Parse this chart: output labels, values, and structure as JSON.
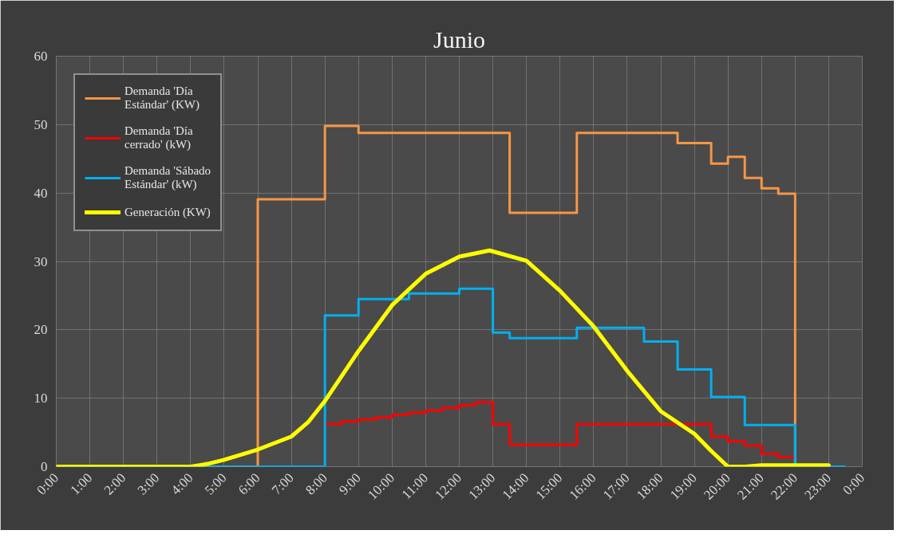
{
  "chart_data": {
    "type": "step",
    "title": "Junio",
    "xlim": [
      0,
      24
    ],
    "ylim": [
      0,
      60
    ],
    "yticks": [
      0,
      10,
      20,
      30,
      40,
      50,
      60
    ],
    "xticks": [
      {
        "value": 0,
        "label": "0:00"
      },
      {
        "value": 1,
        "label": "1:00"
      },
      {
        "value": 2,
        "label": "2:00"
      },
      {
        "value": 3,
        "label": "3:00"
      },
      {
        "value": 4,
        "label": "4:00"
      },
      {
        "value": 5,
        "label": "5:00"
      },
      {
        "value": 6,
        "label": "6:00"
      },
      {
        "value": 7,
        "label": "7:00"
      },
      {
        "value": 8,
        "label": "8:00"
      },
      {
        "value": 9,
        "label": "9:00"
      },
      {
        "value": 10,
        "label": "10:00"
      },
      {
        "value": 11,
        "label": "11:00"
      },
      {
        "value": 12,
        "label": "12:00"
      },
      {
        "value": 13,
        "label": "13:00"
      },
      {
        "value": 14,
        "label": "14:00"
      },
      {
        "value": 15,
        "label": "15:00"
      },
      {
        "value": 16,
        "label": "16:00"
      },
      {
        "value": 17,
        "label": "17:00"
      },
      {
        "value": 18,
        "label": "18:00"
      },
      {
        "value": 19,
        "label": "19:00"
      },
      {
        "value": 20,
        "label": "20:00"
      },
      {
        "value": 21,
        "label": "21:00"
      },
      {
        "value": 22,
        "label": "22:00"
      },
      {
        "value": 23,
        "label": "23:00"
      },
      {
        "value": 24,
        "label": "0:00"
      }
    ],
    "grid": true,
    "legend": "top left",
    "series": [
      {
        "name": "Demanda 'Día Estándar' (KW)",
        "color": "#f79646",
        "x": [
          0,
          6,
          8,
          9,
          13.5,
          15.5,
          18.5,
          19.5,
          20,
          20.5,
          21,
          21.5,
          22
        ],
        "values": [
          0,
          39.1,
          49.8,
          48.8,
          37.1,
          48.8,
          47.3,
          44.3,
          45.3,
          42.2,
          40.7,
          39.9,
          0
        ]
      },
      {
        "name": "Demanda 'Día cerrado' (kW)",
        "color": "#ff0000",
        "x": [
          8,
          8.5,
          9,
          9.5,
          10,
          10.5,
          11,
          11.5,
          12,
          12.5,
          13,
          13.5,
          15.5,
          19.5,
          20,
          20.5,
          21,
          21.5,
          22
        ],
        "values": [
          6.2,
          6.6,
          6.9,
          7.2,
          7.6,
          7.9,
          8.2,
          8.6,
          9.0,
          9.4,
          6.2,
          3.2,
          6.2,
          4.4,
          3.7,
          3.1,
          1.9,
          1.4,
          1.4
        ]
      },
      {
        "name": "Demanda 'Sábado Estándar' (kW)",
        "color": "#00b0f0",
        "x": [
          0,
          8,
          9,
          10.5,
          12,
          13,
          13.5,
          15.5,
          17.5,
          18.5,
          19.5,
          20.5,
          22,
          23.5
        ],
        "values": [
          0,
          22.1,
          24.5,
          25.3,
          26.0,
          19.6,
          18.8,
          20.3,
          18.3,
          14.2,
          10.2,
          6.1,
          0,
          0
        ]
      },
      {
        "name": "Generación (KW)",
        "color": "#ffff00",
        "type": "line",
        "x": [
          0,
          4,
          4.5,
          5,
          6,
          7,
          7.5,
          8,
          9,
          10,
          11,
          12,
          12.9,
          14,
          15,
          16,
          17,
          18,
          19,
          19.5,
          20,
          20.5,
          21,
          22,
          23
        ],
        "values": [
          0,
          0,
          0.4,
          1.0,
          2.5,
          4.4,
          6.5,
          9.6,
          16.9,
          23.6,
          28.2,
          30.7,
          31.6,
          30.1,
          25.7,
          20.5,
          14.0,
          8.1,
          4.8,
          2.3,
          0,
          0,
          0.2,
          0.2,
          0.2
        ]
      }
    ]
  }
}
